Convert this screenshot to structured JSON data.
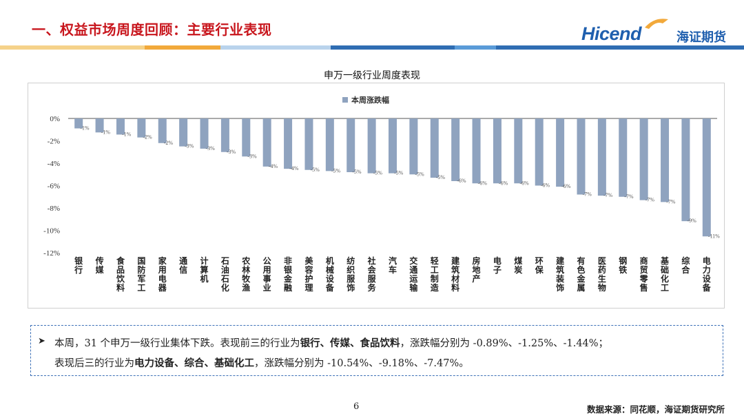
{
  "header": {
    "title": "一、权益市场周度回顾：主要行业表现",
    "logo_text": "Hicend",
    "logo_cn": "海证期货",
    "stripe_colors": [
      "#f5d28a",
      "#f2a93b",
      "#b9d3ec",
      "#2f6db3",
      "#5a9bd8",
      "#2f6db3"
    ]
  },
  "chart_data": {
    "type": "bar",
    "title": "申万一级行业周度表现",
    "legend": "本周涨跌幅",
    "legend_position": "top-center",
    "bar_color": "#8fa3bf",
    "ylim": [
      -12,
      0
    ],
    "yticks": [
      "0%",
      "-2%",
      "-4%",
      "-6%",
      "-8%",
      "-10%",
      "-12%"
    ],
    "categories": [
      "银行",
      "传媒",
      "食品饮料",
      "国防军工",
      "家用电器",
      "通信",
      "计算机",
      "石油石化",
      "农林牧渔",
      "公用事业",
      "非银金融",
      "美容护理",
      "机械设备",
      "纺织服饰",
      "社会服务",
      "汽车",
      "交通运输",
      "轻工制造",
      "建筑材料",
      "房地产",
      "电子",
      "煤炭",
      "环保",
      "建筑装饰",
      "有色金属",
      "医药生物",
      "钢铁",
      "商贸零售",
      "基础化工",
      "综合",
      "电力设备"
    ],
    "values": [
      -0.89,
      -1.25,
      -1.44,
      -1.7,
      -2.2,
      -2.5,
      -2.7,
      -3.0,
      -3.4,
      -4.3,
      -4.5,
      -4.6,
      -4.7,
      -4.8,
      -4.9,
      -4.9,
      -5.0,
      -5.3,
      -5.6,
      -5.8,
      -5.8,
      -5.8,
      -6.0,
      -6.1,
      -6.8,
      -6.9,
      -7.0,
      -7.3,
      -7.47,
      -9.18,
      -10.54
    ],
    "data_labels": [
      "-1%",
      "-1%",
      "-1%",
      "-2%",
      "-2%",
      "-3%",
      "-3%",
      "-3%",
      "-3%",
      "-4%",
      "-4%",
      "-5%",
      "-5%",
      "-5%",
      "-5%",
      "-5%",
      "-5%",
      "-5%",
      "-6%",
      "-6%",
      "-6%",
      "-6%",
      "-6%",
      "-6%",
      "-7%",
      "-7%",
      "-7%",
      "-7%",
      "-7%",
      "-9%",
      "-11%"
    ]
  },
  "note": {
    "line1_a": "本周，31 个申万一级行业集体下跌。表现前三的行业为",
    "line1_b": "银行、传媒、食品饮料",
    "line1_c": "，涨跌幅分别为 -0.89%、-1.25%、-1.44%；",
    "line2_a": "表现后三的行业为",
    "line2_b": "电力设备、综合、基础化工",
    "line2_c": "，涨跌幅分别为 -10.54%、-9.18%、-7.47%。"
  },
  "footer": {
    "page": "6",
    "source": "数据来源：同花顺，海证期货研究所"
  }
}
